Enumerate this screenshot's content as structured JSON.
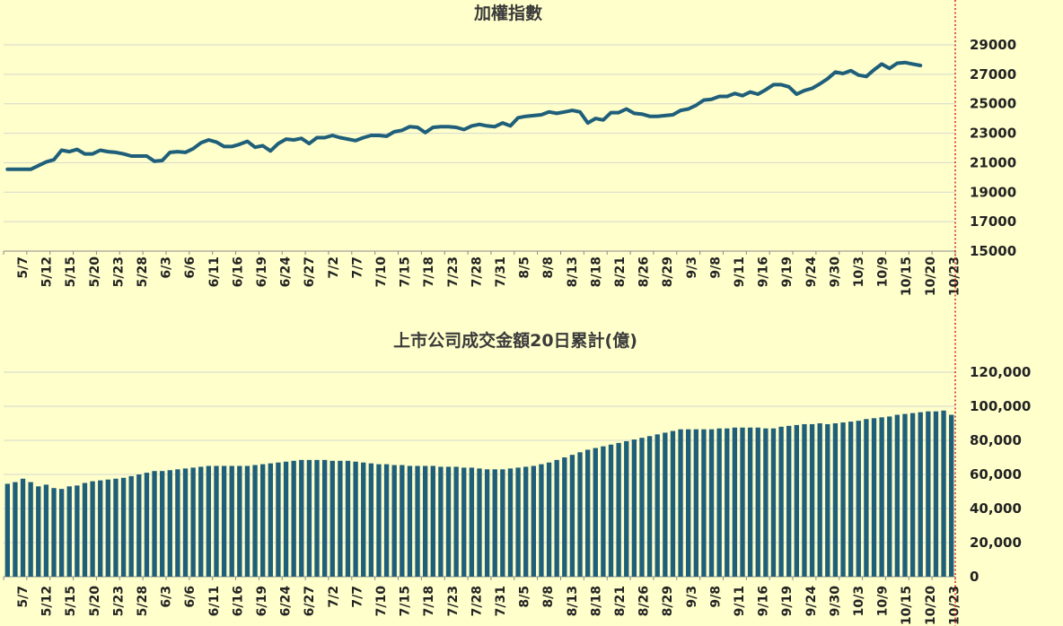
{
  "chart_data": [
    {
      "type": "line",
      "title": "加權指數",
      "color": "#1f5f7a",
      "ylim": [
        15000,
        29000
      ],
      "yticks": [
        "15000",
        "17000",
        "19000",
        "21000",
        "23000",
        "25000",
        "27000",
        "29000"
      ],
      "xtick_labels": [
        "5/7",
        "5/12",
        "5/15",
        "5/20",
        "5/23",
        "5/28",
        "6/3",
        "6/6",
        "6/11",
        "6/16",
        "6/19",
        "6/24",
        "6/27",
        "7/2",
        "7/7",
        "7/10",
        "7/15",
        "7/18",
        "7/23",
        "7/28",
        "7/31",
        "8/5",
        "8/8",
        "8/13",
        "8/18",
        "8/21",
        "8/26",
        "8/29",
        "9/3",
        "9/8",
        "9/11",
        "9/16",
        "9/19",
        "9/24",
        "9/30",
        "10/3",
        "10/9",
        "10/15",
        "10/20",
        "10/23"
      ],
      "grid": true,
      "values": [
        20550,
        20550,
        20550,
        20550,
        20800,
        21050,
        21200,
        21850,
        21750,
        21900,
        21600,
        21600,
        21850,
        21750,
        21700,
        21600,
        21450,
        21450,
        21450,
        21100,
        21150,
        21700,
        21750,
        21700,
        21950,
        22350,
        22550,
        22400,
        22100,
        22100,
        22250,
        22450,
        22050,
        22150,
        21800,
        22300,
        22600,
        22550,
        22650,
        22300,
        22700,
        22700,
        22850,
        22700,
        22600,
        22500,
        22700,
        22850,
        22850,
        22800,
        23100,
        23200,
        23450,
        23400,
        23050,
        23400,
        23450,
        23450,
        23400,
        23250,
        23500,
        23600,
        23500,
        23450,
        23700,
        23500,
        24050,
        24150,
        24200,
        24250,
        24450,
        24350,
        24450,
        24550,
        24450,
        23700,
        24000,
        23900,
        24400,
        24400,
        24650,
        24350,
        24300,
        24150,
        24150,
        24200,
        24250,
        24550,
        24650,
        24900,
        25250,
        25300,
        25500,
        25500,
        25700,
        25550,
        25800,
        25650,
        25950,
        26300,
        26300,
        26150,
        25650,
        25900,
        26050,
        26350,
        26700,
        27150,
        27050,
        27250,
        26950,
        26850,
        27300,
        27700,
        27400,
        27750,
        27800,
        27700,
        27600
      ]
    },
    {
      "type": "bar",
      "title": "上市公司成交金額20日累計(億)",
      "color": "#1f5f7a",
      "ylim": [
        0,
        120000
      ],
      "yticks": [
        "0",
        "20,000",
        "40,000",
        "60,000",
        "80,000",
        "100,000",
        "120,000"
      ],
      "xtick_labels": [
        "5/7",
        "5/12",
        "5/15",
        "5/20",
        "5/23",
        "5/28",
        "6/3",
        "6/6",
        "6/11",
        "6/16",
        "6/19",
        "6/24",
        "6/27",
        "7/2",
        "7/7",
        "7/10",
        "7/15",
        "7/18",
        "7/23",
        "7/28",
        "7/31",
        "8/5",
        "8/8",
        "8/13",
        "8/18",
        "8/21",
        "8/26",
        "8/29",
        "9/3",
        "9/8",
        "9/11",
        "9/16",
        "9/19",
        "9/24",
        "9/30",
        "10/3",
        "10/9",
        "10/15",
        "10/20",
        "10/23"
      ],
      "grid": true,
      "values": [
        54500,
        55500,
        57500,
        55500,
        53000,
        54000,
        52000,
        51500,
        53000,
        53500,
        55000,
        56000,
        56500,
        57000,
        57500,
        58000,
        59000,
        60000,
        61000,
        62000,
        62000,
        62500,
        63000,
        63500,
        64000,
        64500,
        65000,
        65000,
        65000,
        65000,
        65000,
        65000,
        65500,
        66000,
        66500,
        67000,
        67500,
        68000,
        68500,
        68500,
        68500,
        68500,
        68000,
        68000,
        68000,
        67500,
        67000,
        66500,
        66000,
        66000,
        65500,
        65500,
        65000,
        65000,
        65000,
        65000,
        64500,
        64500,
        64500,
        64000,
        64000,
        63500,
        63000,
        63000,
        63000,
        63500,
        64000,
        64500,
        65000,
        66000,
        67000,
        68500,
        70000,
        71500,
        73000,
        74500,
        75500,
        76500,
        77500,
        78500,
        79500,
        80500,
        81500,
        82500,
        83500,
        84500,
        85500,
        86500,
        86500,
        86500,
        86500,
        86500,
        87000,
        87000,
        87500,
        87500,
        87500,
        87500,
        87000,
        87000,
        88000,
        88500,
        89000,
        89500,
        89500,
        90000,
        89500,
        90000,
        90500,
        91000,
        91500,
        92500,
        93000,
        93500,
        94000,
        95000,
        95500,
        96000,
        96500,
        97000,
        97000,
        97500,
        95000
      ]
    }
  ]
}
